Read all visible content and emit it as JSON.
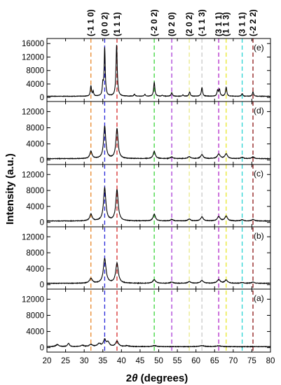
{
  "chart_data": {
    "type": "line",
    "xlabel_prefix": "2",
    "xlabel_symbol": "θ",
    "xlabel_suffix": " (degrees)",
    "ylabel": "Intensity (a.u.)",
    "xlim": [
      20,
      80
    ],
    "x_ticks": [
      20,
      25,
      30,
      35,
      40,
      45,
      50,
      55,
      60,
      65,
      70,
      75,
      80
    ],
    "grid": false,
    "reference_lines": [
      {
        "label": "(-1 1 0)",
        "x": 31.8,
        "color": "#e8892a"
      },
      {
        "label": "(0 0 2)",
        "x": 35.5,
        "color": "#2a2ad8"
      },
      {
        "label": "(1 1 1)",
        "x": 38.8,
        "color": "#d62a2a"
      },
      {
        "label": "(-2 0 2)",
        "x": 48.8,
        "color": "#3ad43a"
      },
      {
        "label": "(0 2 0)",
        "x": 53.5,
        "color": "#a93ad6"
      },
      {
        "label": "(2 0 2)",
        "x": 58.2,
        "color": "#e9e98a"
      },
      {
        "label": "(-1 1 3)",
        "x": 61.6,
        "color": "#c8c8c8"
      },
      {
        "label": "(3 1 1)",
        "x": 66.1,
        "color": "#b025c8"
      },
      {
        "label": "(1 1 3)",
        "x": 68.1,
        "color": "#e8e82a"
      },
      {
        "label": "(3 1 1)",
        "x": 72.4,
        "color": "#2ad4d4"
      },
      {
        "label": "(-2 2 2)",
        "x": 75.3,
        "color": "#8b1515"
      }
    ],
    "panels": [
      {
        "label": "(e)",
        "y_ticks": [
          0,
          4000,
          8000,
          12000,
          16000
        ],
        "ylim": [
          -1200,
          17500
        ],
        "baseline": 350,
        "peaks": [
          {
            "x": 31.8,
            "y": 3100,
            "w": 0.18
          },
          {
            "x": 32.4,
            "y": 1400,
            "w": 0.15
          },
          {
            "x": 35.0,
            "y": 3200,
            "w": 0.16
          },
          {
            "x": 35.5,
            "y": 14200,
            "w": 0.18
          },
          {
            "x": 38.7,
            "y": 15200,
            "w": 0.2
          },
          {
            "x": 43.5,
            "y": 600,
            "w": 0.2
          },
          {
            "x": 46.3,
            "y": 500,
            "w": 0.2
          },
          {
            "x": 48.8,
            "y": 4100,
            "w": 0.2
          },
          {
            "x": 51.0,
            "y": 300,
            "w": 0.2
          },
          {
            "x": 53.5,
            "y": 1100,
            "w": 0.2
          },
          {
            "x": 56.5,
            "y": 400,
            "w": 0.2
          },
          {
            "x": 58.3,
            "y": 1300,
            "w": 0.2
          },
          {
            "x": 61.6,
            "y": 2600,
            "w": 0.2
          },
          {
            "x": 65.8,
            "y": 1700,
            "w": 0.2
          },
          {
            "x": 66.3,
            "y": 2000,
            "w": 0.2
          },
          {
            "x": 68.1,
            "y": 2700,
            "w": 0.2
          },
          {
            "x": 72.4,
            "y": 800,
            "w": 0.2
          },
          {
            "x": 75.3,
            "y": 1300,
            "w": 0.2
          }
        ]
      },
      {
        "label": "(d)",
        "y_ticks": [
          0,
          4000,
          8000,
          12000
        ],
        "ylim": [
          -1100,
          14500
        ],
        "baseline": 350,
        "peaks": [
          {
            "x": 31.8,
            "y": 1800,
            "w": 0.35
          },
          {
            "x": 35.5,
            "y": 8000,
            "w": 0.35
          },
          {
            "x": 38.8,
            "y": 7400,
            "w": 0.35
          },
          {
            "x": 48.8,
            "y": 1800,
            "w": 0.35
          },
          {
            "x": 53.5,
            "y": 400,
            "w": 0.4
          },
          {
            "x": 58.2,
            "y": 500,
            "w": 0.4
          },
          {
            "x": 61.6,
            "y": 1000,
            "w": 0.4
          },
          {
            "x": 66.1,
            "y": 1100,
            "w": 0.45
          },
          {
            "x": 68.1,
            "y": 1200,
            "w": 0.4
          },
          {
            "x": 72.4,
            "y": 300,
            "w": 0.4
          },
          {
            "x": 75.3,
            "y": 400,
            "w": 0.4
          }
        ]
      },
      {
        "label": "(c)",
        "y_ticks": [
          0,
          4000,
          8000,
          12000
        ],
        "ylim": [
          -1100,
          14500
        ],
        "baseline": 350,
        "peaks": [
          {
            "x": 31.8,
            "y": 1700,
            "w": 0.38
          },
          {
            "x": 35.5,
            "y": 8200,
            "w": 0.38
          },
          {
            "x": 38.8,
            "y": 7800,
            "w": 0.38
          },
          {
            "x": 48.8,
            "y": 1700,
            "w": 0.38
          },
          {
            "x": 53.5,
            "y": 400,
            "w": 0.4
          },
          {
            "x": 58.2,
            "y": 500,
            "w": 0.4
          },
          {
            "x": 61.6,
            "y": 1000,
            "w": 0.42
          },
          {
            "x": 66.1,
            "y": 1100,
            "w": 0.45
          },
          {
            "x": 68.1,
            "y": 1200,
            "w": 0.42
          },
          {
            "x": 72.4,
            "y": 300,
            "w": 0.4
          },
          {
            "x": 75.3,
            "y": 400,
            "w": 0.4
          }
        ]
      },
      {
        "label": "(b)",
        "y_ticks": [
          0,
          4000,
          8000,
          12000
        ],
        "ylim": [
          -1100,
          14500
        ],
        "baseline": 350,
        "peaks": [
          {
            "x": 31.8,
            "y": 1200,
            "w": 0.45
          },
          {
            "x": 35.5,
            "y": 6200,
            "w": 0.42
          },
          {
            "x": 38.8,
            "y": 5000,
            "w": 0.42
          },
          {
            "x": 48.8,
            "y": 900,
            "w": 0.45
          },
          {
            "x": 53.5,
            "y": 300,
            "w": 0.45
          },
          {
            "x": 58.2,
            "y": 400,
            "w": 0.45
          },
          {
            "x": 61.6,
            "y": 700,
            "w": 0.45
          },
          {
            "x": 66.1,
            "y": 900,
            "w": 0.5
          },
          {
            "x": 68.1,
            "y": 800,
            "w": 0.45
          },
          {
            "x": 72.4,
            "y": 200,
            "w": 0.45
          },
          {
            "x": 75.3,
            "y": 300,
            "w": 0.45
          }
        ]
      },
      {
        "label": "(a)",
        "y_ticks": [
          0,
          4000,
          8000,
          12000
        ],
        "ylim": [
          -1100,
          14500
        ],
        "baseline": 250,
        "peaks": [
          {
            "x": 22.8,
            "y": 500,
            "w": 0.5
          },
          {
            "x": 25.8,
            "y": 800,
            "w": 0.3
          },
          {
            "x": 29.5,
            "y": 300,
            "w": 0.5
          },
          {
            "x": 31.8,
            "y": 500,
            "w": 0.5
          },
          {
            "x": 34.0,
            "y": 700,
            "w": 0.5
          },
          {
            "x": 35.5,
            "y": 1700,
            "w": 0.4
          },
          {
            "x": 36.4,
            "y": 1000,
            "w": 0.4
          },
          {
            "x": 38.8,
            "y": 1300,
            "w": 0.45
          },
          {
            "x": 41.5,
            "y": 200,
            "w": 0.6
          },
          {
            "x": 48.8,
            "y": 250,
            "w": 0.6
          },
          {
            "x": 61.6,
            "y": 250,
            "w": 0.7
          },
          {
            "x": 66.1,
            "y": 200,
            "w": 0.7
          }
        ]
      }
    ]
  }
}
